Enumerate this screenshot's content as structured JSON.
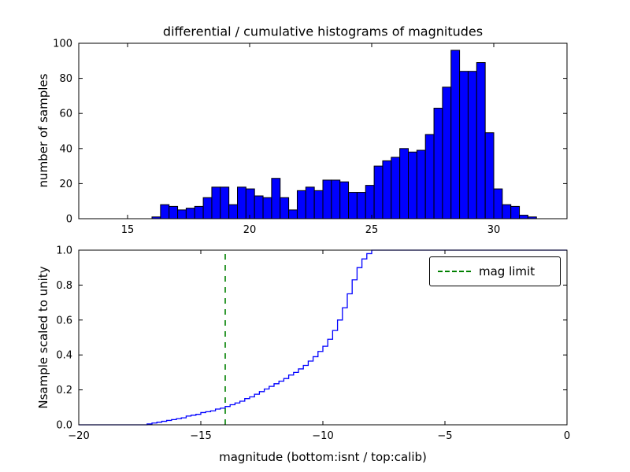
{
  "figure": {
    "background": "#ffffff"
  },
  "chart_data": [
    {
      "type": "bar",
      "title": "differential / cumulative histograms of magnitudes",
      "xlabel": "",
      "ylabel": "number of samples",
      "xlim": [
        13,
        33
      ],
      "ylim": [
        0,
        100
      ],
      "xticks": [
        15,
        20,
        25,
        30
      ],
      "xtick_labels": [
        "15",
        "20",
        "25",
        "30"
      ],
      "yticks": [
        0,
        20,
        40,
        60,
        80,
        100
      ],
      "ytick_labels": [
        "0",
        "20",
        "40",
        "60",
        "80",
        "100"
      ],
      "grid": false,
      "bar_color": "#0000ff",
      "bar_edge": "#000000",
      "bin_start": 16.0,
      "bin_width": 0.35,
      "values": [
        1,
        8,
        7,
        5,
        6,
        7,
        12,
        18,
        18,
        8,
        18,
        17,
        13,
        12,
        23,
        12,
        5,
        16,
        18,
        16,
        22,
        22,
        21,
        15,
        15,
        19,
        30,
        33,
        35,
        40,
        38,
        39,
        48,
        63,
        75,
        96,
        84,
        84,
        89,
        49,
        17,
        8,
        7,
        2,
        1
      ]
    },
    {
      "type": "line",
      "step": true,
      "title": "",
      "xlabel": "magnitude (bottom:isnt / top:calib)",
      "ylabel": "Nsample scaled to unity",
      "xlim": [
        -20,
        0
      ],
      "ylim": [
        0,
        1
      ],
      "xticks": [
        -20,
        -15,
        -10,
        -5,
        0
      ],
      "xtick_labels": [
        "−20",
        "−15",
        "−10",
        "−5",
        "0"
      ],
      "yticks": [
        0,
        0.2,
        0.4,
        0.6,
        0.8,
        1.0
      ],
      "ytick_labels": [
        "0.0",
        "0.2",
        "0.4",
        "0.6",
        "0.8",
        "1.0"
      ],
      "grid": false,
      "line_color": "#0000ff",
      "x": [
        -20,
        -17.2,
        -17.0,
        -16.8,
        -16.6,
        -16.4,
        -16.2,
        -16.0,
        -15.8,
        -15.6,
        -15.4,
        -15.2,
        -15.0,
        -14.8,
        -14.6,
        -14.4,
        -14.2,
        -14.0,
        -13.8,
        -13.6,
        -13.4,
        -13.2,
        -13.0,
        -12.8,
        -12.6,
        -12.4,
        -12.2,
        -12.0,
        -11.8,
        -11.6,
        -11.4,
        -11.2,
        -11.0,
        -10.8,
        -10.6,
        -10.4,
        -10.2,
        -10.0,
        -9.8,
        -9.6,
        -9.4,
        -9.2,
        -9.0,
        -8.8,
        -8.6,
        -8.4,
        -8.2,
        -8.0,
        0
      ],
      "y": [
        0,
        0.005,
        0.01,
        0.015,
        0.02,
        0.025,
        0.03,
        0.035,
        0.04,
        0.05,
        0.055,
        0.06,
        0.07,
        0.075,
        0.08,
        0.09,
        0.095,
        0.105,
        0.115,
        0.125,
        0.135,
        0.15,
        0.16,
        0.175,
        0.19,
        0.205,
        0.22,
        0.235,
        0.25,
        0.265,
        0.285,
        0.3,
        0.32,
        0.34,
        0.365,
        0.39,
        0.42,
        0.45,
        0.49,
        0.54,
        0.6,
        0.67,
        0.75,
        0.83,
        0.9,
        0.95,
        0.98,
        1.0,
        1.0
      ],
      "vline": {
        "x": -14,
        "color": "#008000",
        "style": "dashed",
        "label": "mag limit"
      },
      "legend": {
        "position": "upper right",
        "entries": [
          "mag limit"
        ]
      }
    }
  ]
}
